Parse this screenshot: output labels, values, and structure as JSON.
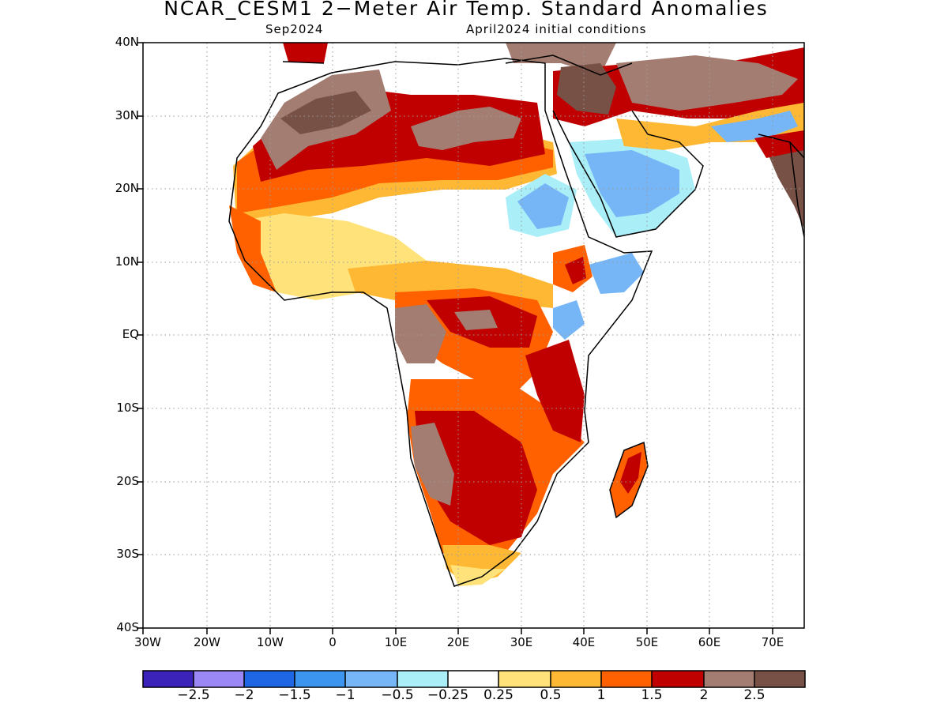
{
  "title": "NCAR_CESM1 2−Meter Air Temp. Standard Anomalies",
  "valid_month": "Sep2024",
  "initial_conditions": "April2024 initial conditions",
  "lat_ticks": [
    "40N",
    "30N",
    "20N",
    "10N",
    "EQ",
    "10S",
    "20S",
    "30S",
    "40S"
  ],
  "lon_ticks": [
    "30W",
    "20W",
    "10W",
    "0",
    "10E",
    "20E",
    "30E",
    "40E",
    "50E",
    "60E",
    "70E"
  ],
  "colorbar": {
    "colors": [
      "#3b22b8",
      "#9b87f5",
      "#1f66e5",
      "#3c96f0",
      "#76b6f6",
      "#aaeef8",
      "#ffffff",
      "#ffe37a",
      "#ffb833",
      "#ff6100",
      "#c00000",
      "#a47d72",
      "#775046"
    ],
    "labels": [
      "−2.5",
      "−2",
      "−1.5",
      "−1",
      "−0.5",
      "−0.25",
      "0.25",
      "0.5",
      "1",
      "1.5",
      "2",
      "2.5"
    ]
  },
  "colors": {
    "land_outline": "#000000",
    "grid": "#9a9a9a"
  }
}
